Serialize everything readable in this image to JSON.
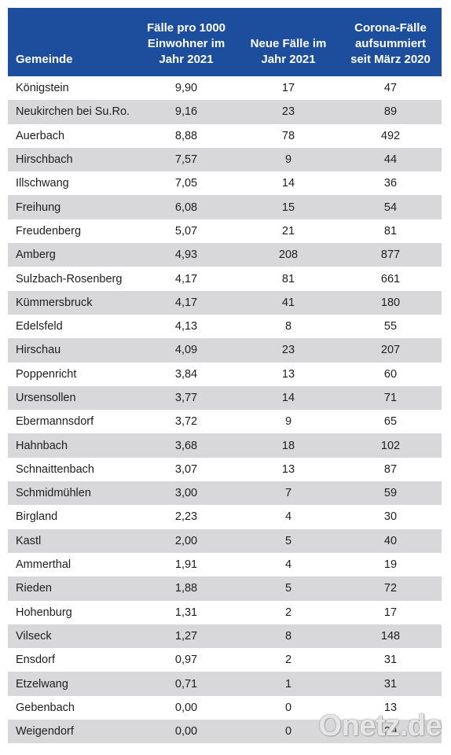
{
  "chart_data": {
    "type": "table",
    "columns": [
      "Gemeinde",
      "Fälle pro 1000\nEinwohner im\nJahr 2021",
      "Neue Fälle im\nJahr 2021",
      "Corona-Fälle\naufsummiert\nseit März 2020"
    ],
    "rows": [
      [
        "Königstein",
        "9,90",
        "17",
        "47"
      ],
      [
        "Neukirchen bei Su.Ro.",
        "9,16",
        "23",
        "89"
      ],
      [
        "Auerbach",
        "8,88",
        "78",
        "492"
      ],
      [
        "Hirschbach",
        "7,57",
        "9",
        "44"
      ],
      [
        "Illschwang",
        "7,05",
        "14",
        "36"
      ],
      [
        "Freihung",
        "6,08",
        "15",
        "54"
      ],
      [
        "Freudenberg",
        "5,07",
        "21",
        "81"
      ],
      [
        "Amberg",
        "4,93",
        "208",
        "877"
      ],
      [
        "Sulzbach-Rosenberg",
        "4,17",
        "81",
        "661"
      ],
      [
        "Kümmersbruck",
        "4,17",
        "41",
        "180"
      ],
      [
        "Edelsfeld",
        "4,13",
        "8",
        "55"
      ],
      [
        "Hirschau",
        "4,09",
        "23",
        "207"
      ],
      [
        "Poppenricht",
        "3,84",
        "13",
        "60"
      ],
      [
        "Ursensollen",
        "3,77",
        "14",
        "71"
      ],
      [
        "Ebermannsdorf",
        "3,72",
        "9",
        "65"
      ],
      [
        "Hahnbach",
        "3,68",
        "18",
        "102"
      ],
      [
        "Schnaittenbach",
        "3,07",
        "13",
        "87"
      ],
      [
        "Schmidmühlen",
        "3,00",
        "7",
        "59"
      ],
      [
        "Birgland",
        "2,23",
        "4",
        "30"
      ],
      [
        "Kastl",
        "2,00",
        "5",
        "40"
      ],
      [
        "Ammerthal",
        "1,91",
        "4",
        "19"
      ],
      [
        "Rieden",
        "1,88",
        "5",
        "72"
      ],
      [
        "Hohenburg",
        "1,31",
        "2",
        "17"
      ],
      [
        "Vilseck",
        "1,27",
        "8",
        "148"
      ],
      [
        "Ensdorf",
        "0,97",
        "2",
        "31"
      ],
      [
        "Etzelwang",
        "0,71",
        "1",
        "31"
      ],
      [
        "Gebenbach",
        "0,00",
        "0",
        "13"
      ],
      [
        "Weigendorf",
        "0,00",
        "0",
        "29"
      ]
    ]
  },
  "watermark": "Onetz.de",
  "colors": {
    "header_bg": "#1c4e9d",
    "header_text": "#ffffff",
    "row_alt_bg": "#d8d8da",
    "text": "#1e1e1e"
  }
}
